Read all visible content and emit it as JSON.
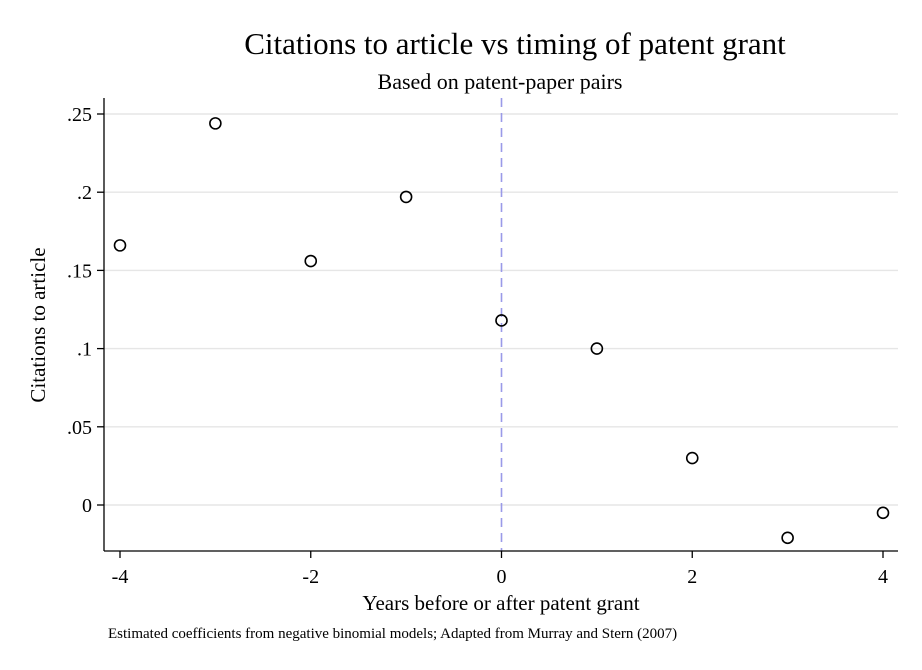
{
  "chart_data": {
    "type": "scatter",
    "title": "Citations to article vs timing of patent grant",
    "subtitle": "Based on patent-paper pairs",
    "xlabel": "Years before or after patent grant",
    "ylabel": "Citations to article",
    "note": "Estimated coefficients from negative binomial models; Adapted from Murray and Stern (2007)",
    "xlim": [
      -4,
      4
    ],
    "ylim": [
      -0.028,
      0.26
    ],
    "x_ticks": [
      -4,
      -2,
      0,
      2,
      4
    ],
    "x_tick_labels": [
      "-4",
      "-2",
      "0",
      "2",
      "4"
    ],
    "y_ticks": [
      0,
      0.05,
      0.1,
      0.15,
      0.2,
      0.25
    ],
    "y_tick_labels": [
      "0",
      ".05",
      ".1",
      ".15",
      ".2",
      ".25"
    ],
    "grid": "horizontal",
    "reference_line": {
      "x": 0,
      "style": "dashed",
      "color": "#9a9ae8"
    },
    "x": [
      -4,
      -3,
      -2,
      -1,
      0,
      1,
      2,
      3,
      4
    ],
    "y": [
      0.166,
      0.244,
      0.156,
      0.197,
      0.118,
      0.1,
      0.03,
      -0.021,
      -0.005
    ],
    "colors": {
      "marker": "#000000",
      "grid": "#e6e6e6",
      "axis": "#000000"
    }
  }
}
